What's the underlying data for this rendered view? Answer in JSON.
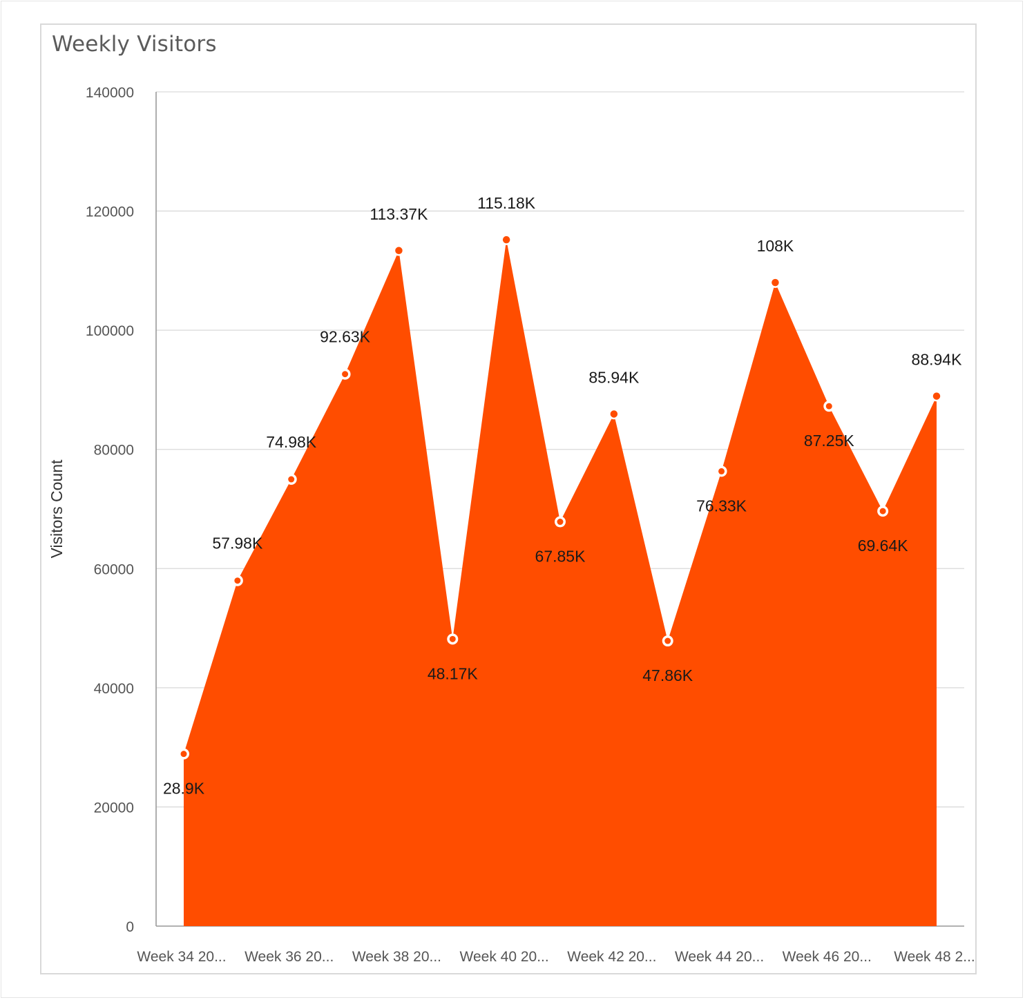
{
  "colors": {
    "area": "#ff4d00",
    "marker_fill": "#ff4d00",
    "marker_hollow_fill": "#ffffff",
    "marker_stroke": "#ffffff",
    "grid": "#d9d9d9",
    "axis": "#9a9a9a"
  },
  "chart_data": {
    "type": "area",
    "title": "Weekly Visitors",
    "xlabel": "",
    "ylabel": "Visitors Count",
    "ylim": [
      0,
      140000
    ],
    "yticks": [
      0,
      20000,
      40000,
      60000,
      80000,
      100000,
      120000,
      140000
    ],
    "grid": true,
    "legend": "none",
    "x_tick_labels": [
      "Week 34 20...",
      "Week 36 20...",
      "Week 38 20...",
      "Week 40 20...",
      "Week 42 20...",
      "Week 44 20...",
      "Week 46 20...",
      "Week 48 2..."
    ],
    "series": [
      {
        "values": [
          28900,
          57980,
          74980,
          92630,
          113370,
          48170,
          115180,
          67850,
          85940,
          47860,
          76330,
          108000,
          87250,
          69640,
          88940
        ],
        "labels": [
          "28.9K",
          "57.98K",
          "74.98K",
          "92.63K",
          "113.37K",
          "48.17K",
          "115.18K",
          "67.85K",
          "85.94K",
          "47.86K",
          "76.33K",
          "108K",
          "87.25K",
          "69.64K",
          "88.94K"
        ],
        "label_position": [
          "below",
          "above",
          "above",
          "above",
          "above",
          "below",
          "above",
          "below",
          "above",
          "below",
          "below",
          "above",
          "below",
          "below",
          "above"
        ],
        "marker_style": [
          "hollow",
          "hollow",
          "hollow",
          "hollow",
          "solid",
          "hollow",
          "solid",
          "hollow",
          "solid",
          "hollow",
          "hollow",
          "solid",
          "hollow",
          "hollow",
          "solid"
        ]
      }
    ]
  }
}
